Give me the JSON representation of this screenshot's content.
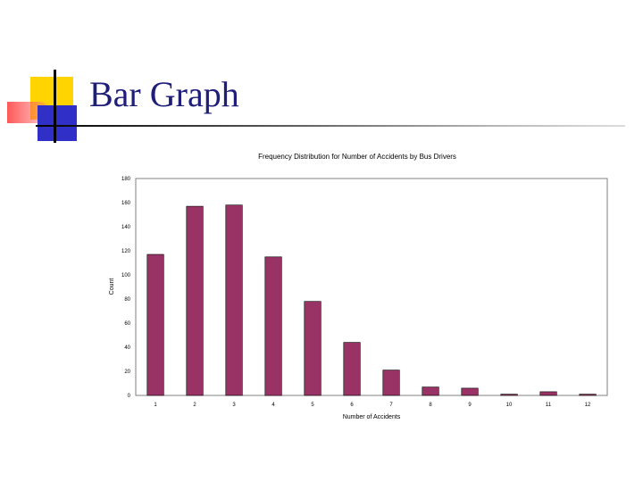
{
  "slide": {
    "title": "Bar Graph"
  },
  "chart_data": {
    "type": "bar",
    "title": "Frequency Distribution for Number of Accidents by Bus Drivers",
    "xlabel": "Number of Accidents",
    "ylabel": "Count",
    "categories": [
      "1",
      "2",
      "3",
      "4",
      "5",
      "6",
      "7",
      "8",
      "9",
      "10",
      "11",
      "12"
    ],
    "values": [
      117,
      157,
      158,
      115,
      78,
      44,
      21,
      7,
      6,
      1,
      3,
      1
    ],
    "ylim": [
      0,
      180
    ],
    "yticks": [
      0,
      20,
      40,
      60,
      80,
      100,
      120,
      140,
      160,
      180
    ],
    "bar_color": "#993366",
    "grid": false,
    "legend": "none"
  }
}
